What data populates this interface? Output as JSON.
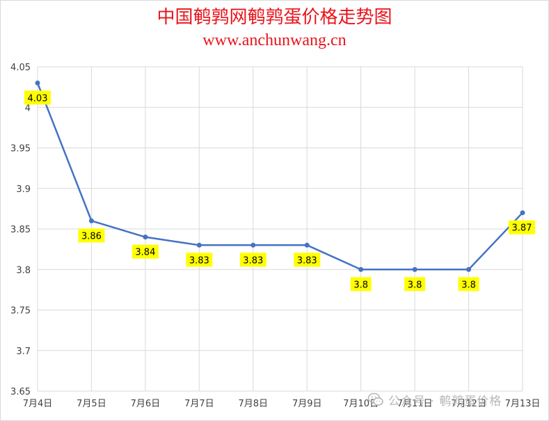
{
  "header": {
    "title": "中国鹌鹑网鹌鹑蛋价格走势图",
    "subtitle": "www.anchunwang.cn"
  },
  "watermark": {
    "text": "公众号 · 鹌鹑蛋价格",
    "icon": "wechat-icon"
  },
  "colors": {
    "title": "#e8141b",
    "line": "#4472c4",
    "label_bg": "#ffff00",
    "grid": "#d9d9d9"
  },
  "chart_data": {
    "type": "line",
    "title": "中国鹌鹑网鹌鹑蛋价格走势图",
    "subtitle": "www.anchunwang.cn",
    "xlabel": "",
    "ylabel": "",
    "categories": [
      "7月4日",
      "7月5日",
      "7月6日",
      "7月7日",
      "7月8日",
      "7月9日",
      "7月10日",
      "7月11日",
      "7月12日",
      "7月13日"
    ],
    "values": [
      4.03,
      3.86,
      3.84,
      3.83,
      3.83,
      3.83,
      3.8,
      3.8,
      3.8,
      3.87
    ],
    "data_labels": [
      "4.03",
      "3.86",
      "3.84",
      "3.83",
      "3.83",
      "3.83",
      "3.8",
      "3.8",
      "3.8",
      "3.87"
    ],
    "ylim": [
      3.65,
      4.05
    ],
    "y_ticks": [
      "3.65",
      "3.7",
      "3.75",
      "3.8",
      "3.85",
      "3.9",
      "3.95",
      "4",
      "4.05"
    ],
    "y_tick_values": [
      3.65,
      3.7,
      3.75,
      3.8,
      3.85,
      3.9,
      3.95,
      4.0,
      4.05
    ],
    "grid": true,
    "legend": "none",
    "label_position": "below"
  }
}
